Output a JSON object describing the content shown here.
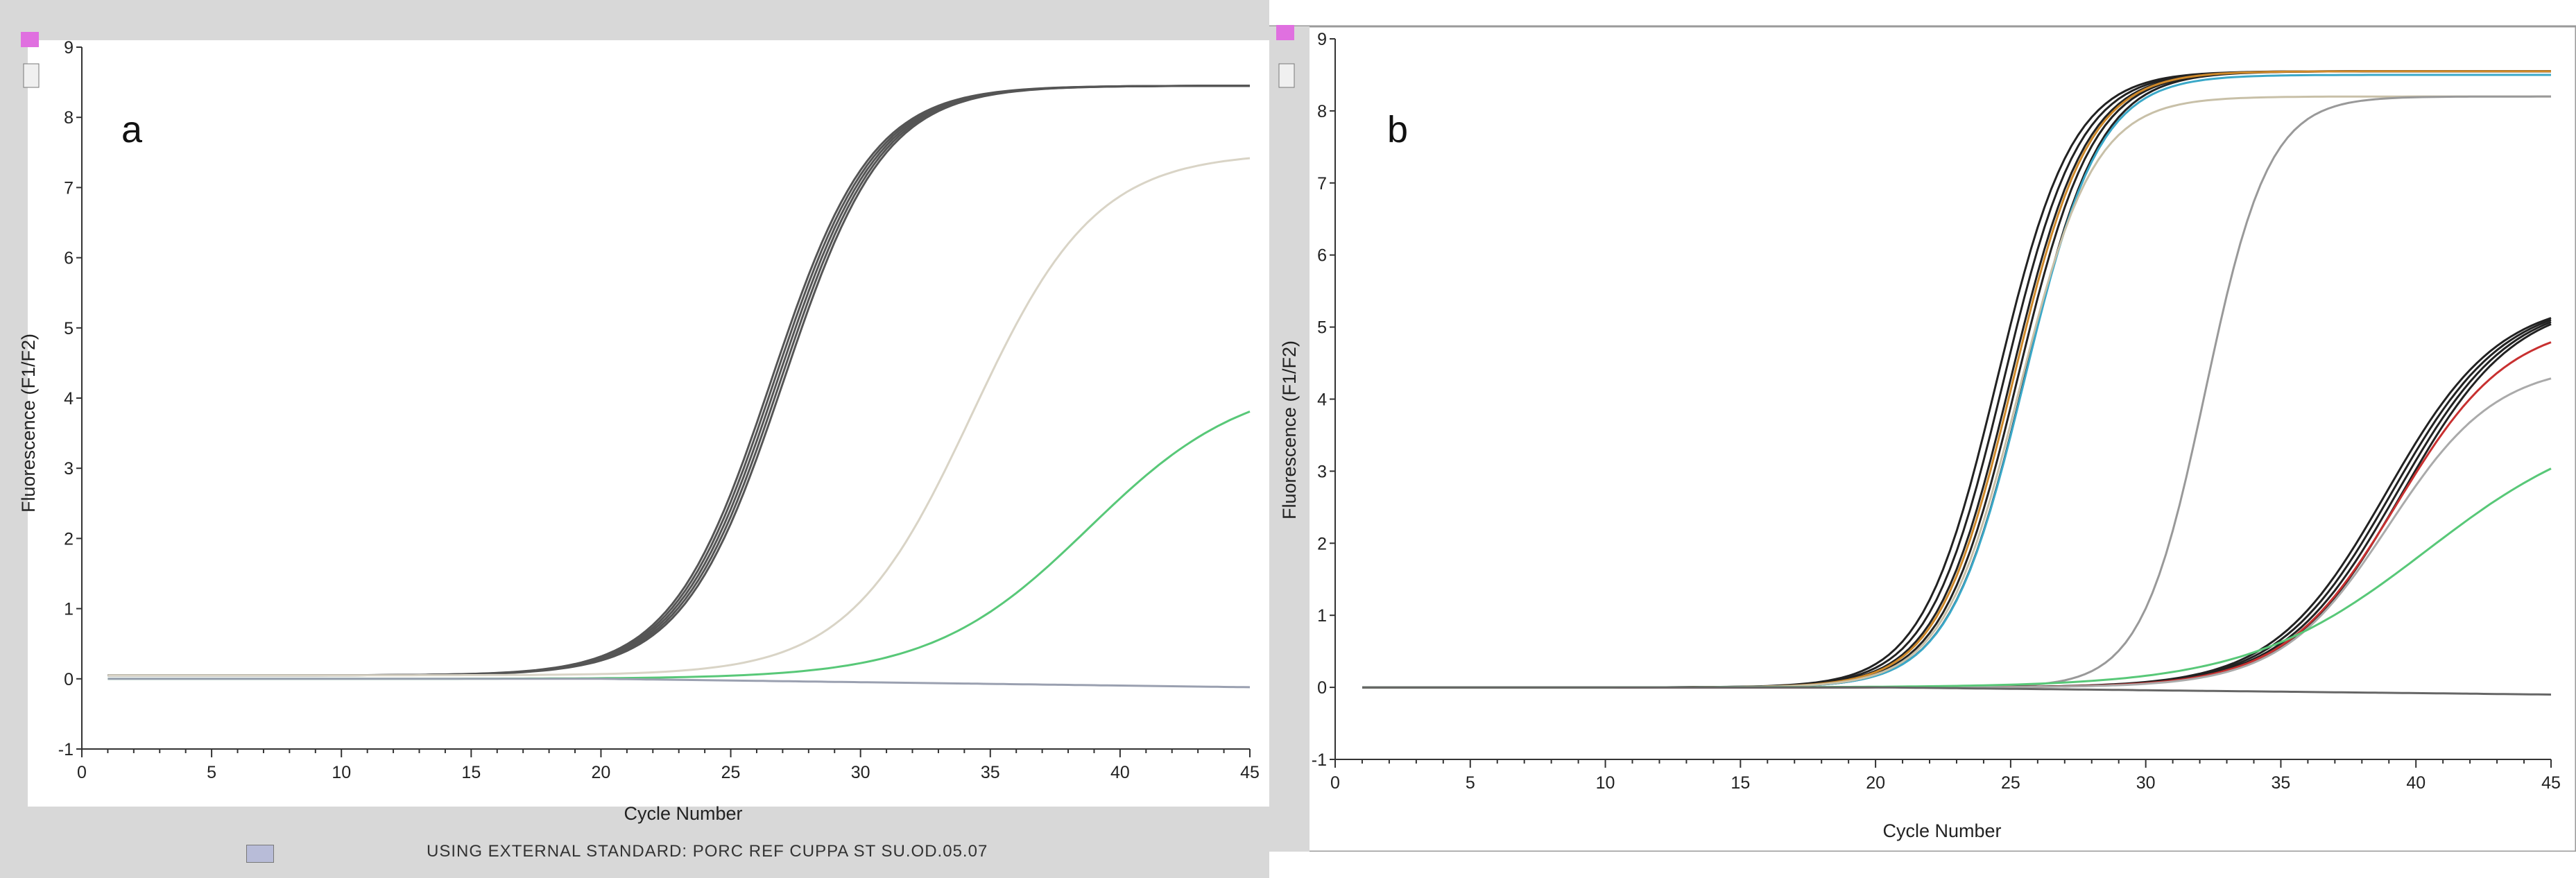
{
  "chart_data": [
    {
      "type": "line",
      "panel_label": "a",
      "xlabel": "Cycle Number",
      "ylabel": "Fluorescence (F1/F2)",
      "xlim": [
        0,
        45
      ],
      "ylim": [
        -1,
        9
      ],
      "x_ticks": [
        0,
        5,
        10,
        15,
        20,
        25,
        30,
        35,
        40,
        45
      ],
      "y_ticks": [
        -1,
        0,
        1,
        2,
        3,
        4,
        5,
        6,
        7,
        8,
        9
      ],
      "grid": false,
      "x_range": [
        1,
        45
      ],
      "series": [
        {
          "color": "#555555",
          "baseline": 0.05,
          "plateau": 8.45,
          "midpoint": 26.8,
          "slope": 0.52,
          "copies": 5,
          "spread": 0.12
        },
        {
          "color": "#d9d4c6",
          "baseline": 0.05,
          "plateau": 7.5,
          "midpoint": 34.3,
          "slope": 0.42,
          "copies": 1,
          "spread": 0
        },
        {
          "color": "#58c878",
          "baseline": 0.0,
          "plateau": 4.3,
          "midpoint": 38.8,
          "slope": 0.33,
          "copies": 1,
          "spread": 0
        },
        {
          "color": "#9aa0b0",
          "baseline": 0.0,
          "drift": -0.12,
          "flat": true,
          "copies": 1,
          "spread": 0
        }
      ]
    },
    {
      "type": "line",
      "panel_label": "b",
      "xlabel": "Cycle Number",
      "ylabel": "Fluorescence (F1/F2)",
      "xlim": [
        0,
        45
      ],
      "ylim": [
        -1,
        9
      ],
      "x_ticks": [
        0,
        5,
        10,
        15,
        20,
        25,
        30,
        35,
        40,
        45
      ],
      "y_ticks": [
        -1,
        0,
        1,
        2,
        3,
        4,
        5,
        6,
        7,
        8,
        9
      ],
      "grid": false,
      "x_range": [
        1,
        45
      ],
      "series": [
        {
          "color": "#222222",
          "baseline": 0.0,
          "plateau": 8.55,
          "midpoint": 25.0,
          "slope": 0.72,
          "copies": 5,
          "spread": 0.25
        },
        {
          "color": "#d08a2a",
          "baseline": 0.0,
          "plateau": 8.55,
          "midpoint": 25.1,
          "slope": 0.72,
          "copies": 1,
          "spread": 0
        },
        {
          "color": "#3aa8c8",
          "baseline": 0.0,
          "plateau": 8.5,
          "midpoint": 25.5,
          "slope": 0.72,
          "copies": 1,
          "spread": 0
        },
        {
          "color": "#c8c0a8",
          "baseline": 0.0,
          "plateau": 8.2,
          "midpoint": 25.3,
          "slope": 0.72,
          "copies": 1,
          "spread": 0
        },
        {
          "color": "#999999",
          "baseline": 0.0,
          "plateau": 8.2,
          "midpoint": 32.2,
          "slope": 0.85,
          "copies": 1,
          "spread": 0
        },
        {
          "color": "#222222",
          "baseline": 0.0,
          "plateau": 5.4,
          "midpoint": 39.2,
          "slope": 0.48,
          "copies": 4,
          "spread": 0.2
        },
        {
          "color": "#c83030",
          "baseline": 0.0,
          "plateau": 5.1,
          "midpoint": 39.3,
          "slope": 0.48,
          "copies": 1,
          "spread": 0
        },
        {
          "color": "#aaaaaa",
          "baseline": 0.0,
          "plateau": 4.5,
          "midpoint": 39.0,
          "slope": 0.5,
          "copies": 1,
          "spread": 0
        },
        {
          "color": "#58c878",
          "baseline": 0.0,
          "plateau": 3.8,
          "midpoint": 40.4,
          "slope": 0.3,
          "copies": 1,
          "spread": 0
        },
        {
          "color": "#666666",
          "baseline": 0.0,
          "drift": -0.1,
          "flat": true,
          "copies": 1,
          "spread": 0
        }
      ]
    }
  ],
  "status_bar": {
    "text": "USING EXTERNAL STANDARD: PORC REF CUPPA ST SU.OD.05.07"
  }
}
